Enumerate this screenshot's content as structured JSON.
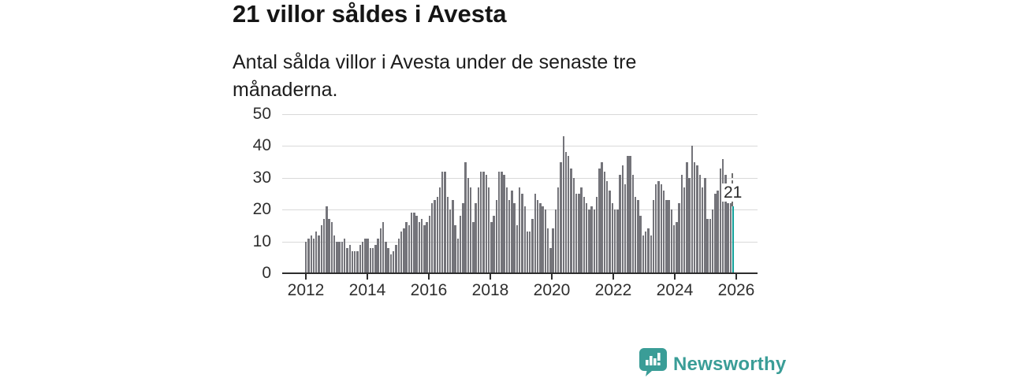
{
  "header": {
    "title": "21 villor såldes i Avesta",
    "subtitle": "Antal sålda villor i Avesta under de senaste tre månaderna."
  },
  "chart_data": {
    "type": "bar",
    "title": "21 villor såldes i Avesta",
    "xlabel": "",
    "ylabel": "",
    "ylim": [
      0,
      50
    ],
    "y_ticks": [
      0,
      10,
      20,
      30,
      40,
      50
    ],
    "x_tick_years": [
      2012,
      2014,
      2016,
      2018,
      2020,
      2022,
      2024,
      2026
    ],
    "x_tick_labels": [
      "2012",
      "2014",
      "2016",
      "2018",
      "2020",
      "2022",
      "2024",
      "2026"
    ],
    "frequency": "monthly",
    "start_period": "2012-01",
    "grid": true,
    "bar_color": "#74747a",
    "values": [
      10,
      11,
      12,
      11,
      13,
      12,
      15,
      17,
      21,
      17,
      16,
      12,
      10,
      10,
      10,
      11,
      8,
      9,
      7,
      7,
      7,
      9,
      10,
      11,
      11,
      8,
      8,
      9,
      11,
      14,
      16,
      10,
      8,
      6,
      7,
      9,
      11,
      13,
      14,
      16,
      15,
      19,
      19,
      18,
      16,
      17,
      15,
      16,
      18,
      22,
      23,
      24,
      27,
      32,
      32,
      24,
      20,
      23,
      15,
      11,
      18,
      22,
      35,
      30,
      27,
      16,
      22,
      27,
      32,
      32,
      31,
      27,
      16,
      18,
      23,
      32,
      32,
      31,
      27,
      23,
      26,
      22,
      15,
      27,
      25,
      21,
      13,
      13,
      17,
      25,
      23,
      22,
      21,
      20,
      14,
      8,
      14,
      20,
      27,
      35,
      43,
      38,
      37,
      33,
      30,
      25,
      25,
      27,
      24,
      22,
      20,
      21,
      20,
      24,
      33,
      35,
      32,
      29,
      26,
      22,
      20,
      20,
      31,
      34,
      28,
      37,
      37,
      31,
      24,
      23,
      18,
      12,
      13,
      14,
      12,
      23,
      28,
      29,
      28,
      26,
      23,
      23,
      20,
      15,
      16,
      22,
      31,
      27,
      35,
      30,
      40,
      35,
      34,
      31,
      27,
      30,
      17,
      17,
      20,
      25,
      26,
      33,
      36,
      31,
      22,
      22,
      21
    ],
    "highlight": {
      "index": 166,
      "value": 21,
      "label": "21",
      "color": "#12a19a"
    }
  },
  "footer": {
    "brand": "Newsworthy",
    "brand_color": "#3a9d97"
  }
}
